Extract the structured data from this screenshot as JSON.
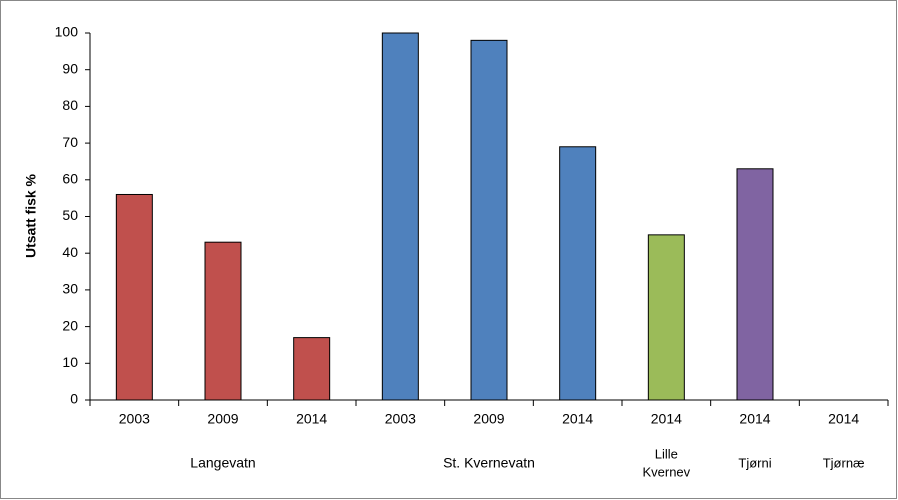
{
  "chart_data": {
    "type": "bar",
    "y_label": "Utsatt fisk %",
    "categories": [
      "2003",
      "2009",
      "2014",
      "2003",
      "2009",
      "2014",
      "2014",
      "2014",
      "2014"
    ],
    "values": [
      56,
      43,
      17,
      100,
      98,
      69,
      45,
      63,
      0
    ],
    "colors": [
      "#c0504d",
      "#c0504d",
      "#c0504d",
      "#4f81bd",
      "#4f81bd",
      "#4f81bd",
      "#9bbb59",
      "#8064a2",
      "#8064a2"
    ],
    "groups": [
      {
        "lines": [
          "Langevatn"
        ],
        "count": 3
      },
      {
        "lines": [
          "St. Kvernevatn"
        ],
        "count": 3
      },
      {
        "lines": [
          "Lille",
          "Kvernev"
        ],
        "count": 1
      },
      {
        "lines": [
          "Tjørni"
        ],
        "count": 1
      },
      {
        "lines": [
          "Tjørnæ"
        ],
        "count": 1
      }
    ],
    "ylim": [
      0,
      100
    ],
    "yticks": [
      0,
      10,
      20,
      30,
      40,
      50,
      60,
      70,
      80,
      90,
      100
    ],
    "grid": false
  }
}
